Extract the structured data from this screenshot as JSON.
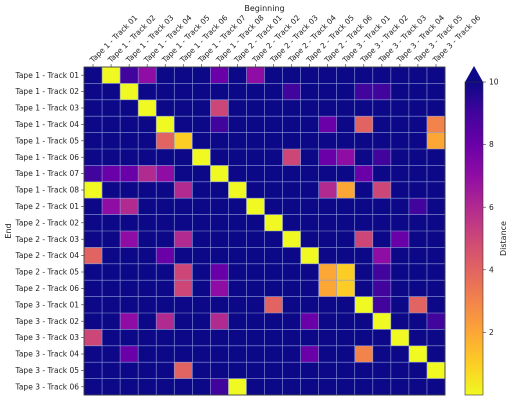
{
  "chart_data": {
    "type": "heatmap",
    "xlabel": "Beginning",
    "ylabel": "End",
    "colorbar_label": "Distance",
    "colorbar_ticks": [
      2,
      4,
      6,
      8,
      10
    ],
    "value_range": [
      0,
      10
    ],
    "colormap": "plasma",
    "grid": true,
    "x_categories": [
      "Tape 1 - Track 01",
      "Tape 1 - Track 02",
      "Tape 1 - Track 03",
      "Tape 1 - Track 04",
      "Tape 1 - Track 05",
      "Tape 1 - Track 06",
      "Tape 1 - Track 07",
      "Tape 1 - Track 08",
      "Tape 2 - Track 01",
      "Tape 2 - Track 02",
      "Tape 2 - Track 03",
      "Tape 2 - Track 04",
      "Tape 2 - Track 05",
      "Tape 2 - Track 06",
      "Tape 3 - Track 01",
      "Tape 3 - Track 02",
      "Tape 3 - Track 03",
      "Tape 3 - Track 04",
      "Tape 3 - Track 05",
      "Tape 3 - Track 06"
    ],
    "y_categories": [
      "Tape 1 - Track 01",
      "Tape 1 - Track 02",
      "Tape 1 - Track 03",
      "Tape 1 - Track 04",
      "Tape 1 - Track 05",
      "Tape 1 - Track 06",
      "Tape 1 - Track 07",
      "Tape 1 - Track 08",
      "Tape 2 - Track 01",
      "Tape 2 - Track 02",
      "Tape 2 - Track 03",
      "Tape 2 - Track 04",
      "Tape 2 - Track 05",
      "Tape 2 - Track 06",
      "Tape 3 - Track 01",
      "Tape 3 - Track 02",
      "Tape 3 - Track 03",
      "Tape 3 - Track 04",
      "Tape 3 - Track 05",
      "Tape 3 - Track 06"
    ],
    "values": [
      [
        10,
        0,
        9,
        7,
        10,
        10,
        10,
        8,
        10,
        7,
        10,
        10,
        10,
        10,
        10,
        10,
        10,
        10,
        10,
        10
      ],
      [
        10,
        10,
        0,
        10,
        10,
        10,
        10,
        10,
        10,
        10,
        10,
        9,
        10,
        10,
        10,
        9,
        9,
        10,
        10,
        10
      ],
      [
        10,
        10,
        10,
        0,
        10,
        10,
        10,
        5,
        10,
        10,
        10,
        10,
        10,
        10,
        10,
        10,
        10,
        10,
        10,
        10
      ],
      [
        10,
        10,
        10,
        10,
        0,
        10,
        10,
        9,
        10,
        10,
        10,
        10,
        10,
        8,
        10,
        4,
        10,
        10,
        10,
        3
      ],
      [
        10,
        10,
        10,
        10,
        4,
        1,
        10,
        10,
        10,
        10,
        10,
        10,
        10,
        10,
        10,
        10,
        10,
        10,
        10,
        2
      ],
      [
        10,
        10,
        10,
        10,
        10,
        10,
        0,
        10,
        10,
        10,
        10,
        5,
        10,
        8,
        7,
        10,
        9,
        10,
        10,
        10
      ],
      [
        9,
        8,
        8,
        6,
        7,
        10,
        10,
        0,
        10,
        10,
        10,
        10,
        10,
        10,
        10,
        8,
        10,
        10,
        10,
        10
      ],
      [
        0,
        10,
        10,
        10,
        10,
        6,
        10,
        10,
        0,
        10,
        10,
        10,
        10,
        6,
        2,
        10,
        5,
        10,
        10,
        10
      ],
      [
        10,
        7,
        6,
        10,
        10,
        10,
        10,
        10,
        10,
        0,
        10,
        10,
        10,
        10,
        10,
        10,
        10,
        10,
        9,
        10
      ],
      [
        10,
        10,
        10,
        10,
        10,
        10,
        10,
        10,
        10,
        10,
        0,
        10,
        10,
        10,
        10,
        10,
        10,
        10,
        10,
        10
      ],
      [
        10,
        10,
        7,
        10,
        10,
        6,
        10,
        10,
        10,
        10,
        10,
        0,
        10,
        10,
        10,
        5,
        10,
        8,
        10,
        10
      ],
      [
        4,
        10,
        10,
        10,
        8,
        10,
        10,
        10,
        10,
        10,
        10,
        10,
        0,
        10,
        10,
        10,
        7,
        10,
        10,
        10
      ],
      [
        10,
        10,
        10,
        10,
        10,
        5,
        10,
        8,
        10,
        10,
        10,
        10,
        10,
        2,
        1,
        10,
        9,
        10,
        10,
        10
      ],
      [
        10,
        10,
        10,
        10,
        10,
        5,
        10,
        7,
        10,
        10,
        10,
        10,
        10,
        2,
        1,
        10,
        9,
        10,
        10,
        10
      ],
      [
        10,
        10,
        10,
        10,
        10,
        10,
        10,
        10,
        10,
        10,
        4,
        10,
        10,
        10,
        10,
        0,
        9,
        10,
        4,
        10
      ],
      [
        10,
        10,
        7,
        10,
        6,
        10,
        10,
        6,
        10,
        10,
        10,
        10,
        8,
        10,
        10,
        10,
        0,
        10,
        10,
        9
      ],
      [
        5,
        10,
        10,
        10,
        10,
        10,
        10,
        10,
        10,
        10,
        10,
        10,
        10,
        10,
        10,
        10,
        10,
        0,
        10,
        10
      ],
      [
        10,
        10,
        8,
        10,
        10,
        10,
        10,
        10,
        10,
        10,
        10,
        10,
        8,
        10,
        10,
        3,
        10,
        10,
        0,
        10
      ],
      [
        10,
        10,
        10,
        10,
        10,
        4,
        10,
        10,
        10,
        10,
        10,
        10,
        10,
        10,
        10,
        10,
        10,
        10,
        10,
        0
      ],
      [
        10,
        10,
        10,
        10,
        10,
        10,
        10,
        9,
        0,
        10,
        10,
        10,
        10,
        10,
        10,
        10,
        10,
        10,
        10,
        10
      ]
    ]
  }
}
